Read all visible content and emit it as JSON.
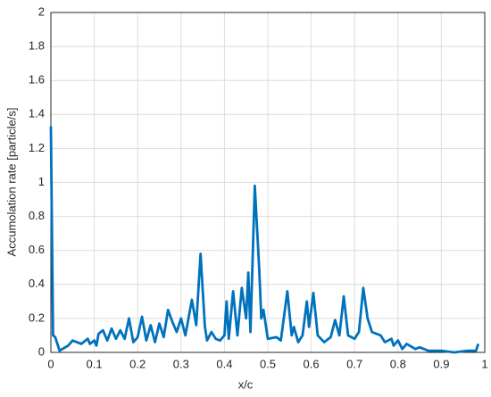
{
  "chart_data": {
    "type": "line",
    "xlabel": "x/c",
    "ylabel": "Accumolation rate [particle/s]",
    "x": [
      0,
      0.005,
      0.01,
      0.02,
      0.04,
      0.05,
      0.07,
      0.085,
      0.09,
      0.1,
      0.105,
      0.11,
      0.12,
      0.13,
      0.14,
      0.15,
      0.16,
      0.17,
      0.18,
      0.19,
      0.2,
      0.21,
      0.22,
      0.23,
      0.24,
      0.25,
      0.26,
      0.27,
      0.28,
      0.29,
      0.3,
      0.31,
      0.325,
      0.335,
      0.345,
      0.355,
      0.36,
      0.37,
      0.38,
      0.39,
      0.4,
      0.405,
      0.41,
      0.42,
      0.43,
      0.44,
      0.45,
      0.455,
      0.46,
      0.47,
      0.48,
      0.485,
      0.49,
      0.5,
      0.52,
      0.53,
      0.545,
      0.555,
      0.56,
      0.57,
      0.58,
      0.59,
      0.595,
      0.605,
      0.615,
      0.63,
      0.645,
      0.655,
      0.665,
      0.675,
      0.685,
      0.7,
      0.71,
      0.72,
      0.73,
      0.74,
      0.76,
      0.77,
      0.785,
      0.79,
      0.8,
      0.81,
      0.82,
      0.84,
      0.85,
      0.87,
      0.9,
      0.93,
      0.96,
      0.98,
      0.985
    ],
    "series": [
      {
        "color": "#0072bd",
        "values": [
          1.33,
          0.1,
          0.09,
          0.01,
          0.04,
          0.07,
          0.05,
          0.08,
          0.05,
          0.07,
          0.04,
          0.11,
          0.13,
          0.07,
          0.14,
          0.08,
          0.13,
          0.08,
          0.2,
          0.06,
          0.09,
          0.21,
          0.07,
          0.16,
          0.06,
          0.17,
          0.09,
          0.25,
          0.18,
          0.12,
          0.2,
          0.1,
          0.31,
          0.16,
          0.58,
          0.15,
          0.07,
          0.12,
          0.08,
          0.07,
          0.1,
          0.3,
          0.08,
          0.36,
          0.1,
          0.38,
          0.2,
          0.47,
          0.12,
          0.98,
          0.5,
          0.2,
          0.25,
          0.08,
          0.09,
          0.07,
          0.36,
          0.1,
          0.15,
          0.06,
          0.1,
          0.3,
          0.15,
          0.35,
          0.1,
          0.06,
          0.09,
          0.19,
          0.1,
          0.33,
          0.1,
          0.08,
          0.12,
          0.38,
          0.2,
          0.12,
          0.1,
          0.06,
          0.08,
          0.04,
          0.07,
          0.02,
          0.05,
          0.02,
          0.03,
          0.01,
          0.01,
          0,
          0.01,
          0.01,
          0.05
        ]
      }
    ],
    "xlim": [
      0,
      1
    ],
    "xticks": [
      0,
      0.1,
      0.2,
      0.3,
      0.4,
      0.5,
      0.6,
      0.7,
      0.8,
      0.9,
      1
    ],
    "ylim": [
      0,
      2
    ],
    "yticks": [
      0,
      0.2,
      0.4,
      0.6,
      0.8,
      1,
      1.2,
      1.4,
      1.6,
      1.8,
      2
    ],
    "grid": true
  }
}
